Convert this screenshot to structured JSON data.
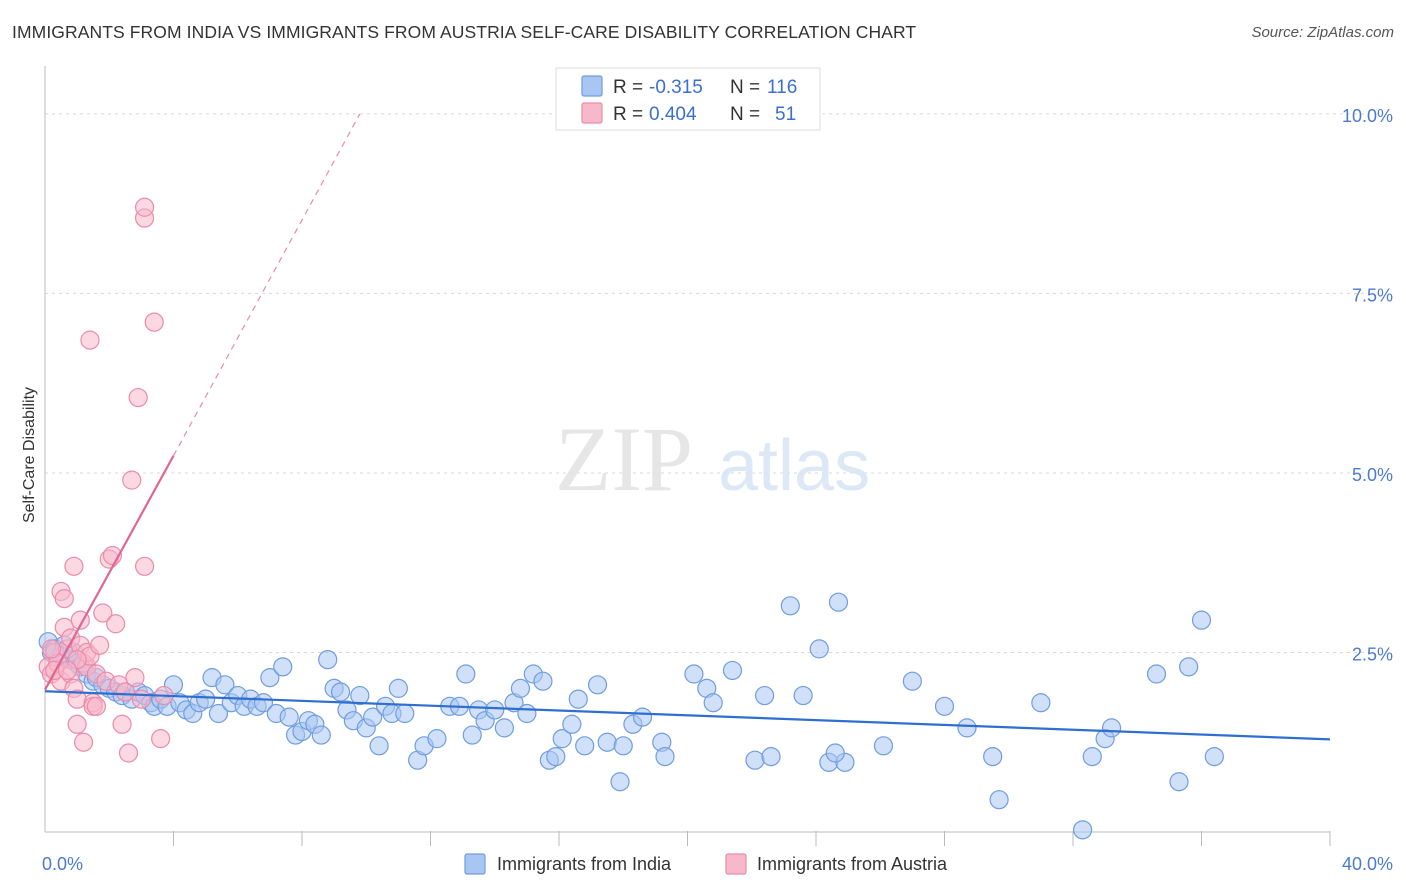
{
  "title": "IMMIGRANTS FROM INDIA VS IMMIGRANTS FROM AUSTRIA SELF-CARE DISABILITY CORRELATION CHART",
  "source": "Source: ZipAtlas.com",
  "watermark": {
    "zip": "ZIP",
    "atlas": "atlas"
  },
  "colors": {
    "india_fill": "#a9c6f2",
    "india_stroke": "#6f9de0",
    "india_line": "#2f6fd0",
    "austria_fill": "#f7b8cb",
    "austria_stroke": "#ec8aab",
    "austria_line": "#e0668f",
    "grid": "#d8d8d8",
    "tick_text": "#4a7bd0"
  },
  "stats": [
    {
      "r_label": "R =",
      "r": "-0.315",
      "n_label": "N =",
      "n": "116"
    },
    {
      "r_label": "R =",
      "r": "0.404",
      "n_label": "N =",
      "n": "51"
    }
  ],
  "chart_data": {
    "type": "scatter",
    "title": "IMMIGRANTS FROM INDIA VS IMMIGRANTS FROM AUSTRIA SELF-CARE DISABILITY CORRELATION CHART",
    "xlabel": "",
    "ylabel": "Self-Care Disability",
    "xlim": [
      0,
      40
    ],
    "ylim": [
      0,
      10.5
    ],
    "x_tick_labels": [
      {
        "value": 0,
        "label": "0.0%"
      },
      {
        "value": 40,
        "label": "40.0%"
      }
    ],
    "y_tick_labels": [
      {
        "value": 2.5,
        "label": "2.5%"
      },
      {
        "value": 5.0,
        "label": "5.0%"
      },
      {
        "value": 7.5,
        "label": "7.5%"
      },
      {
        "value": 10.0,
        "label": "10.0%"
      }
    ],
    "x_minor_ticks": [
      4,
      8,
      12,
      16,
      20,
      24,
      28,
      32,
      36,
      40
    ],
    "legend_position": "bottom-center",
    "series": [
      {
        "name": "Immigrants from India",
        "r": -0.315,
        "n": 116,
        "trend": {
          "x0": 0,
          "y0": 1.96,
          "x1": 40,
          "y1": 1.29
        },
        "points": [
          [
            0.1,
            2.65
          ],
          [
            0.2,
            2.5
          ],
          [
            0.3,
            2.55
          ],
          [
            0.5,
            2.45
          ],
          [
            0.6,
            2.6
          ],
          [
            0.8,
            2.4
          ],
          [
            0.9,
            2.5
          ],
          [
            1.0,
            2.35
          ],
          [
            1.1,
            2.3
          ],
          [
            1.3,
            2.2
          ],
          [
            1.5,
            2.1
          ],
          [
            1.6,
            2.15
          ],
          [
            1.8,
            2.05
          ],
          [
            2.0,
            2.0
          ],
          [
            2.2,
            1.95
          ],
          [
            2.4,
            1.9
          ],
          [
            2.5,
            1.95
          ],
          [
            2.7,
            1.85
          ],
          [
            2.9,
            1.95
          ],
          [
            3.1,
            1.9
          ],
          [
            3.3,
            1.8
          ],
          [
            3.4,
            1.75
          ],
          [
            3.6,
            1.85
          ],
          [
            3.8,
            1.75
          ],
          [
            4.0,
            2.05
          ],
          [
            4.2,
            1.8
          ],
          [
            4.4,
            1.7
          ],
          [
            4.6,
            1.65
          ],
          [
            4.8,
            1.8
          ],
          [
            5.0,
            1.85
          ],
          [
            5.2,
            2.15
          ],
          [
            5.4,
            1.65
          ],
          [
            5.6,
            2.05
          ],
          [
            5.8,
            1.8
          ],
          [
            6.0,
            1.9
          ],
          [
            6.2,
            1.75
          ],
          [
            6.4,
            1.85
          ],
          [
            6.6,
            1.75
          ],
          [
            6.8,
            1.8
          ],
          [
            7.0,
            2.15
          ],
          [
            7.2,
            1.65
          ],
          [
            7.4,
            2.3
          ],
          [
            7.6,
            1.6
          ],
          [
            7.8,
            1.35
          ],
          [
            8.0,
            1.4
          ],
          [
            8.2,
            1.55
          ],
          [
            8.4,
            1.5
          ],
          [
            8.6,
            1.35
          ],
          [
            8.8,
            2.4
          ],
          [
            9.0,
            2.0
          ],
          [
            9.2,
            1.95
          ],
          [
            9.4,
            1.7
          ],
          [
            9.6,
            1.55
          ],
          [
            9.8,
            1.9
          ],
          [
            10.0,
            1.45
          ],
          [
            10.2,
            1.6
          ],
          [
            10.4,
            1.2
          ],
          [
            10.6,
            1.75
          ],
          [
            10.8,
            1.65
          ],
          [
            11.0,
            2.0
          ],
          [
            11.2,
            1.65
          ],
          [
            11.6,
            1.0
          ],
          [
            11.8,
            1.2
          ],
          [
            12.2,
            1.3
          ],
          [
            12.6,
            1.75
          ],
          [
            12.9,
            1.75
          ],
          [
            13.1,
            2.2
          ],
          [
            13.3,
            1.35
          ],
          [
            13.5,
            1.7
          ],
          [
            13.7,
            1.55
          ],
          [
            14.0,
            1.7
          ],
          [
            14.3,
            1.45
          ],
          [
            14.6,
            1.8
          ],
          [
            14.8,
            2.0
          ],
          [
            15.0,
            1.65
          ],
          [
            15.2,
            2.2
          ],
          [
            15.5,
            2.1
          ],
          [
            15.7,
            1.0
          ],
          [
            15.9,
            1.05
          ],
          [
            16.1,
            1.3
          ],
          [
            16.4,
            1.5
          ],
          [
            16.6,
            1.85
          ],
          [
            16.8,
            1.2
          ],
          [
            17.2,
            2.05
          ],
          [
            17.5,
            1.25
          ],
          [
            17.9,
            0.7
          ],
          [
            18.0,
            1.2
          ],
          [
            18.3,
            1.5
          ],
          [
            18.6,
            1.6
          ],
          [
            19.2,
            1.25
          ],
          [
            19.3,
            1.05
          ],
          [
            20.2,
            2.2
          ],
          [
            20.6,
            2.0
          ],
          [
            20.8,
            1.8
          ],
          [
            21.4,
            2.25
          ],
          [
            22.1,
            1.0
          ],
          [
            22.4,
            1.9
          ],
          [
            22.6,
            1.05
          ],
          [
            23.2,
            3.15
          ],
          [
            23.6,
            1.9
          ],
          [
            24.1,
            2.55
          ],
          [
            24.4,
            0.97
          ],
          [
            24.7,
            3.2
          ],
          [
            24.9,
            0.97
          ],
          [
            24.6,
            1.1
          ],
          [
            26.1,
            1.2
          ],
          [
            27.0,
            2.1
          ],
          [
            28.0,
            1.75
          ],
          [
            28.7,
            1.45
          ],
          [
            29.5,
            1.05
          ],
          [
            29.7,
            0.45
          ],
          [
            31.0,
            1.8
          ],
          [
            32.6,
            1.05
          ],
          [
            33.0,
            1.3
          ],
          [
            33.2,
            1.45
          ],
          [
            34.6,
            2.2
          ],
          [
            35.3,
            0.7
          ],
          [
            35.6,
            2.3
          ],
          [
            36.0,
            2.95
          ],
          [
            36.4,
            1.05
          ],
          [
            32.3,
            0.03
          ]
        ]
      },
      {
        "name": "Immigrants from Austria",
        "r": 0.404,
        "n": 51,
        "trend": {
          "x0": 0,
          "y0": 1.98,
          "x1": 4,
          "y1": 5.24
        },
        "trend_extension": {
          "x0": 4,
          "y0": 5.24,
          "x1": 9.8,
          "y1": 10.0
        },
        "points": [
          [
            0.1,
            2.3
          ],
          [
            0.2,
            2.2
          ],
          [
            0.3,
            2.5
          ],
          [
            0.4,
            2.35
          ],
          [
            0.5,
            2.1
          ],
          [
            0.5,
            3.35
          ],
          [
            0.6,
            3.25
          ],
          [
            0.6,
            2.85
          ],
          [
            0.7,
            2.55
          ],
          [
            0.8,
            2.7
          ],
          [
            0.8,
            2.2
          ],
          [
            0.9,
            2.0
          ],
          [
            0.9,
            3.7
          ],
          [
            1.0,
            1.85
          ],
          [
            1.0,
            1.5
          ],
          [
            1.1,
            2.95
          ],
          [
            1.1,
            2.6
          ],
          [
            1.2,
            2.35
          ],
          [
            1.2,
            1.25
          ],
          [
            1.3,
            2.3
          ],
          [
            1.3,
            2.5
          ],
          [
            1.4,
            2.45
          ],
          [
            1.4,
            6.85
          ],
          [
            1.5,
            1.8
          ],
          [
            1.5,
            1.75
          ],
          [
            1.6,
            2.2
          ],
          [
            1.6,
            1.75
          ],
          [
            1.7,
            2.6
          ],
          [
            1.8,
            3.05
          ],
          [
            1.9,
            2.1
          ],
          [
            2.0,
            3.8
          ],
          [
            2.1,
            3.85
          ],
          [
            2.2,
            2.9
          ],
          [
            2.3,
            2.05
          ],
          [
            2.5,
            1.95
          ],
          [
            2.6,
            1.1
          ],
          [
            2.7,
            4.9
          ],
          [
            2.8,
            2.15
          ],
          [
            2.9,
            6.05
          ],
          [
            3.0,
            1.85
          ],
          [
            3.1,
            3.7
          ],
          [
            3.4,
            7.1
          ],
          [
            3.6,
            1.3
          ],
          [
            3.7,
            1.9
          ],
          [
            3.1,
            8.55
          ],
          [
            3.1,
            8.7
          ],
          [
            0.2,
            2.55
          ],
          [
            0.3,
            2.25
          ],
          [
            2.4,
            1.5
          ],
          [
            1.0,
            2.4
          ],
          [
            0.7,
            2.25
          ]
        ]
      }
    ]
  },
  "legend": {
    "india_label": "Immigrants from India",
    "austria_label": "Immigrants from Austria"
  }
}
